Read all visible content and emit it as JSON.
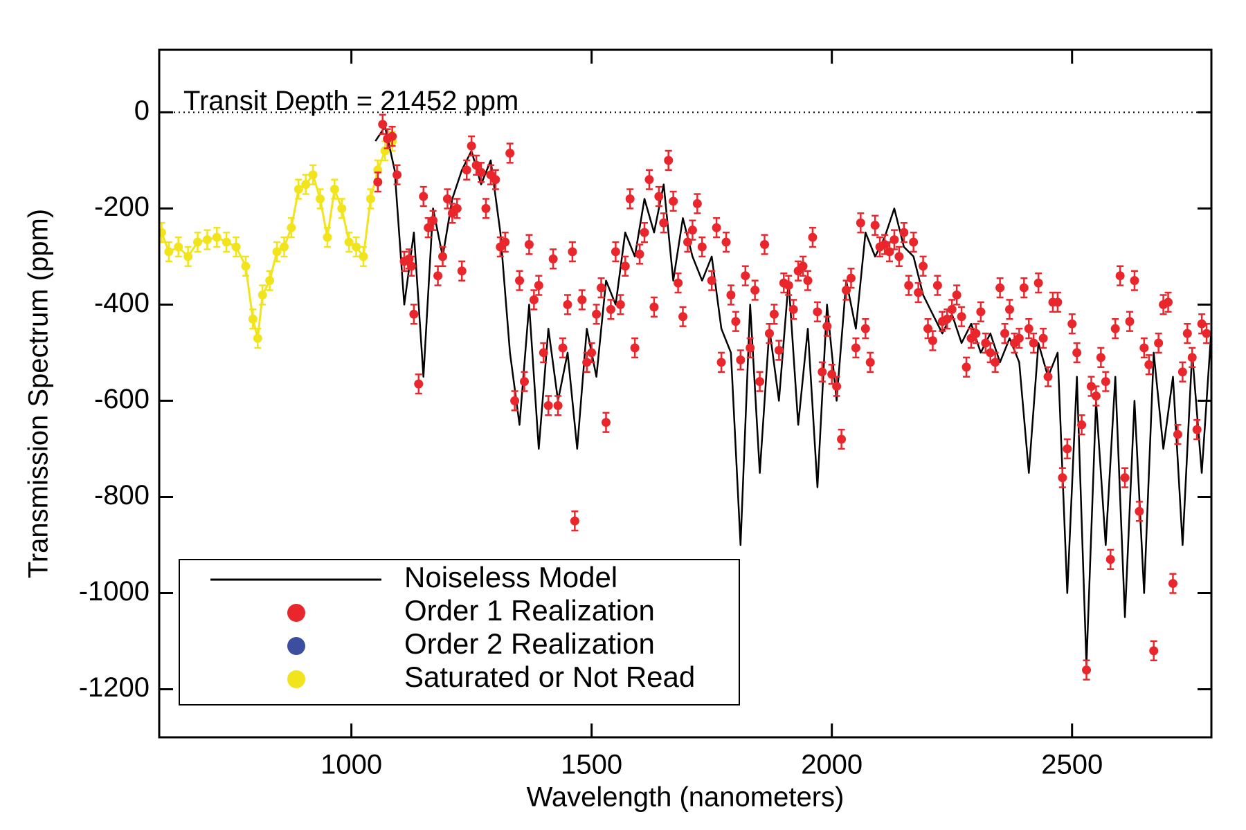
{
  "chart_data": {
    "type": "scatter",
    "xlabel": "Wavelength (nanometers)",
    "ylabel": "Transmission Spectrum (ppm)",
    "annotation": "Transit Depth =  21452 ppm",
    "hline": 0,
    "xlim": [
      600,
      2790
    ],
    "ylim": [
      -1300,
      130
    ],
    "xticks": [
      1000,
      1500,
      2000,
      2500
    ],
    "yticks": [
      0,
      -200,
      -400,
      -600,
      -800,
      -1000,
      -1200
    ],
    "legend": "lower left",
    "series": [
      {
        "name": "Noiseless Model",
        "color": "#000000",
        "kind": "line",
        "x": [
          1050,
          1070,
          1090,
          1110,
          1130,
          1150,
          1170,
          1190,
          1210,
          1230,
          1250,
          1270,
          1290,
          1310,
          1330,
          1350,
          1370,
          1390,
          1410,
          1430,
          1450,
          1470,
          1490,
          1510,
          1530,
          1550,
          1570,
          1590,
          1610,
          1630,
          1650,
          1670,
          1690,
          1710,
          1730,
          1750,
          1770,
          1790,
          1810,
          1830,
          1850,
          1870,
          1890,
          1910,
          1930,
          1950,
          1970,
          1990,
          2010,
          2030,
          2050,
          2070,
          2090,
          2110,
          2130,
          2150,
          2170,
          2190,
          2210,
          2230,
          2250,
          2270,
          2290,
          2310,
          2330,
          2350,
          2370,
          2390,
          2410,
          2430,
          2450,
          2470,
          2490,
          2510,
          2530,
          2550,
          2570,
          2590,
          2610,
          2630,
          2650,
          2670,
          2690,
          2710,
          2730,
          2750,
          2770,
          2790
        ],
        "values": [
          -60,
          -30,
          -120,
          -400,
          -250,
          -550,
          -200,
          -300,
          -180,
          -120,
          -80,
          -150,
          -100,
          -250,
          -500,
          -650,
          -400,
          -700,
          -450,
          -600,
          -500,
          -700,
          -450,
          -550,
          -350,
          -400,
          -250,
          -300,
          -180,
          -250,
          -150,
          -350,
          -220,
          -300,
          -350,
          -300,
          -450,
          -500,
          -900,
          -400,
          -750,
          -450,
          -600,
          -350,
          -650,
          -450,
          -780,
          -400,
          -600,
          -350,
          -450,
          -250,
          -300,
          -260,
          -200,
          -280,
          -300,
          -380,
          -420,
          -460,
          -420,
          -480,
          -440,
          -500,
          -460,
          -520,
          -470,
          -520,
          -750,
          -480,
          -550,
          -500,
          -1000,
          -550,
          -1150,
          -600,
          -900,
          -550,
          -1050,
          -600,
          -1000,
          -500,
          -700,
          -550,
          -900,
          -500,
          -750,
          -450
        ]
      },
      {
        "name": "Order 1 Realization",
        "color": "#e8262c",
        "kind": "points",
        "yerr": 20,
        "x": [
          1055,
          1065,
          1075,
          1085,
          1095,
          1110,
          1120,
          1125,
          1130,
          1140,
          1150,
          1160,
          1170,
          1180,
          1190,
          1200,
          1210,
          1220,
          1230,
          1240,
          1250,
          1260,
          1270,
          1280,
          1290,
          1300,
          1310,
          1320,
          1330,
          1340,
          1350,
          1360,
          1370,
          1380,
          1390,
          1400,
          1410,
          1420,
          1430,
          1440,
          1450,
          1460,
          1465,
          1480,
          1490,
          1500,
          1510,
          1520,
          1530,
          1540,
          1550,
          1560,
          1570,
          1580,
          1590,
          1600,
          1610,
          1620,
          1630,
          1640,
          1650,
          1660,
          1670,
          1680,
          1690,
          1700,
          1710,
          1720,
          1730,
          1750,
          1760,
          1770,
          1780,
          1790,
          1800,
          1810,
          1820,
          1830,
          1840,
          1850,
          1860,
          1870,
          1880,
          1890,
          1900,
          1910,
          1920,
          1930,
          1940,
          1950,
          1960,
          1970,
          1980,
          1990,
          2000,
          2010,
          2020,
          2030,
          2040,
          2050,
          2060,
          2070,
          2080,
          2090,
          2100,
          2110,
          2120,
          2130,
          2140,
          2150,
          2160,
          2170,
          2180,
          2190,
          2200,
          2210,
          2220,
          2230,
          2240,
          2250,
          2260,
          2270,
          2280,
          2290,
          2300,
          2310,
          2320,
          2330,
          2340,
          2350,
          2360,
          2370,
          2380,
          2390,
          2400,
          2410,
          2420,
          2430,
          2440,
          2450,
          2460,
          2470,
          2480,
          2490,
          2500,
          2510,
          2520,
          2530,
          2540,
          2550,
          2560,
          2570,
          2580,
          2590,
          2600,
          2610,
          2620,
          2630,
          2640,
          2650,
          2660,
          2670,
          2680,
          2690,
          2700,
          2710,
          2720,
          2730,
          2740,
          2750,
          2760,
          2770,
          2780
        ],
        "values": [
          -145,
          -25,
          -55,
          -50,
          -130,
          -310,
          -305,
          -320,
          -420,
          -565,
          -175,
          -240,
          -225,
          -340,
          -300,
          -180,
          -210,
          -200,
          -330,
          -120,
          -70,
          -110,
          -125,
          -200,
          -130,
          -140,
          -280,
          -270,
          -85,
          -600,
          -350,
          -560,
          -275,
          -390,
          -360,
          -500,
          -610,
          -305,
          -610,
          -490,
          -400,
          -290,
          -850,
          -390,
          -520,
          -500,
          -420,
          -365,
          -645,
          -410,
          -290,
          -400,
          -320,
          -180,
          -490,
          -295,
          -250,
          -140,
          -405,
          -175,
          -230,
          -100,
          -185,
          -355,
          -425,
          -270,
          -245,
          -190,
          -280,
          -350,
          -240,
          -520,
          -270,
          -380,
          -435,
          -515,
          -340,
          -490,
          -370,
          -560,
          -275,
          -460,
          -420,
          -495,
          -355,
          -360,
          -410,
          -330,
          -320,
          -350,
          -260,
          -415,
          -540,
          -445,
          -545,
          -570,
          -680,
          -370,
          -345,
          -490,
          -230,
          -450,
          -520,
          -235,
          -280,
          -275,
          -290,
          -265,
          -300,
          -250,
          -360,
          -270,
          -375,
          -320,
          -450,
          -475,
          -360,
          -435,
          -430,
          -410,
          -380,
          -425,
          -530,
          -470,
          -460,
          -415,
          -480,
          -500,
          -520,
          -365,
          -460,
          -410,
          -480,
          -470,
          -365,
          -450,
          -480,
          -355,
          -470,
          -550,
          -395,
          -395,
          -760,
          -700,
          -440,
          -500,
          -650,
          -1160,
          -570,
          -590,
          -510,
          -560,
          -930,
          -450,
          -340,
          -760,
          -435,
          -350,
          -830,
          -490,
          -525,
          -1120,
          -480,
          -400,
          -395,
          -980,
          -670,
          -540,
          -460,
          -510,
          -660,
          -440,
          -460
        ]
      },
      {
        "name": "Order 2 Realization",
        "color": "#3b4ea0",
        "kind": "points",
        "x": [],
        "values": []
      },
      {
        "name": "Saturated or Not Read",
        "color": "#f2e41c",
        "kind": "points",
        "yerr": 20,
        "connect": true,
        "x": [
          605,
          620,
          640,
          660,
          680,
          700,
          720,
          740,
          760,
          780,
          795,
          805,
          815,
          830,
          845,
          860,
          875,
          890,
          905,
          920,
          935,
          950,
          965,
          980,
          995,
          1010,
          1025,
          1040,
          1055,
          1070,
          1085
        ],
        "values": [
          -250,
          -290,
          -280,
          -300,
          -270,
          -265,
          -260,
          -270,
          -280,
          -320,
          -430,
          -470,
          -380,
          -350,
          -290,
          -280,
          -240,
          -160,
          -150,
          -130,
          -180,
          -260,
          -160,
          -200,
          -270,
          -280,
          -300,
          -180,
          -120,
          -80,
          -60
        ]
      }
    ]
  }
}
